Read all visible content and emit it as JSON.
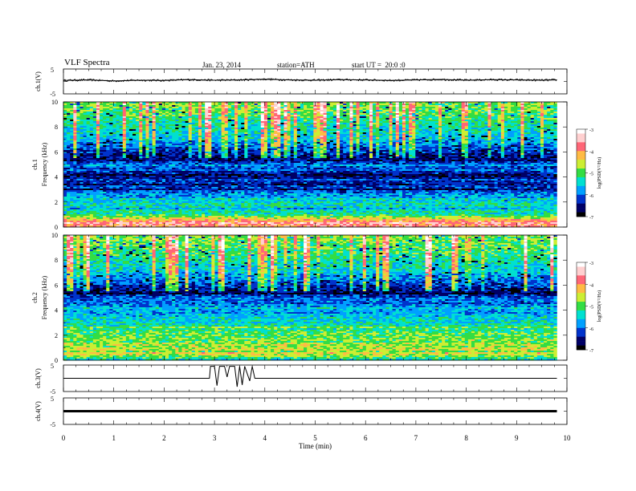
{
  "header": {
    "title": "VLF Spectra",
    "date": "Jan. 23, 2014",
    "station": "station=ATH",
    "start": "start UT =  20:0 :0"
  },
  "colorbar_label": "log(PSD(V²/Hz)",
  "colors": {
    "colormap": [
      "#000000",
      "#000066",
      "#0033cc",
      "#00a0ff",
      "#00e0d0",
      "#33dd44",
      "#ccee33",
      "#ffbb44",
      "#ff6677",
      "#ffd0d0",
      "#ffffff"
    ]
  },
  "chart_data": [
    {
      "type": "line",
      "panel": "ch1",
      "ylabel": "ch.1(V)",
      "ylim": [
        -5,
        5
      ],
      "yticks": [
        "5",
        "-5"
      ],
      "x": [
        0,
        0.5,
        1,
        1.5,
        2,
        2.5,
        3,
        3.5,
        4,
        4.5,
        5,
        5.5,
        6,
        6.5,
        7,
        7.5,
        8,
        8.5,
        9,
        9.5,
        9.8
      ],
      "values": [
        0.4,
        0.6,
        0.2,
        0.5,
        0.4,
        0.7,
        0.5,
        0.6,
        0.9,
        0.6,
        0.5,
        0.7,
        0.6,
        0.4,
        0.6,
        0.8,
        0.5,
        0.7,
        0.6,
        0.5,
        0.6
      ]
    },
    {
      "type": "heatmap",
      "panel": "ch1",
      "ylabel": "ch.1",
      "ylabel2": "Frequency (kHz)",
      "ylim": [
        0,
        10
      ],
      "yticks": [
        "0",
        "2",
        "4",
        "6",
        "8",
        "10"
      ],
      "xlim": [
        0,
        9.8
      ],
      "zlim": [
        -7,
        -3
      ],
      "colorbar_ticks": [
        "-3",
        "-4",
        "-5",
        "-6",
        "-7"
      ],
      "profile_freq_khz": [
        0,
        0.5,
        1,
        1.5,
        2,
        2.5,
        3,
        3.5,
        4,
        4.5,
        5,
        5.5,
        6,
        6.5,
        7,
        7.5,
        8,
        8.5,
        9,
        9.5,
        10
      ],
      "profile_log_psd": [
        -3.8,
        -4.0,
        -5.2,
        -5.3,
        -5.5,
        -5.8,
        -6.2,
        -6.3,
        -6.5,
        -6.3,
        -6.0,
        -6.6,
        -6.3,
        -6.0,
        -5.6,
        -5.5,
        -5.3,
        -5.2,
        -5.0,
        -4.9,
        -4.8
      ]
    },
    {
      "type": "heatmap",
      "panel": "ch2",
      "ylabel": "ch.2",
      "ylabel2": "Frequency (kHz)",
      "ylim": [
        0,
        10
      ],
      "yticks": [
        "0",
        "2",
        "4",
        "6",
        "8",
        "10"
      ],
      "xlim": [
        0,
        9.8
      ],
      "zlim": [
        -7,
        -3
      ],
      "colorbar_ticks": [
        "-3",
        "-4",
        "-5",
        "-6",
        "-7"
      ],
      "profile_freq_khz": [
        0,
        0.5,
        1,
        1.5,
        2,
        2.5,
        3,
        3.5,
        4,
        4.5,
        5,
        5.5,
        6,
        6.5,
        7,
        7.5,
        8,
        8.5,
        9,
        9.5,
        10
      ],
      "profile_log_psd": [
        -5.5,
        -4.4,
        -4.6,
        -4.8,
        -4.9,
        -5.2,
        -5.4,
        -5.6,
        -5.7,
        -5.9,
        -6.1,
        -6.6,
        -6.2,
        -5.9,
        -5.6,
        -5.4,
        -5.3,
        -5.1,
        -5.0,
        -4.9,
        -4.8
      ]
    },
    {
      "type": "line",
      "panel": "ch3",
      "ylabel": "ch.3(V)",
      "ylim": [
        -5,
        5
      ],
      "yticks": [
        "5",
        "-5"
      ],
      "x": [
        0,
        2.9,
        2.92,
        3.0,
        3.05,
        3.1,
        3.2,
        3.25,
        3.3,
        3.4,
        3.45,
        3.5,
        3.55,
        3.6,
        3.7,
        3.75,
        3.8,
        9.8
      ],
      "values": [
        0,
        0,
        4.5,
        4.5,
        -2.8,
        4.5,
        4.5,
        0.5,
        4.5,
        4.5,
        -3.2,
        4.5,
        -2.5,
        4.5,
        -1.0,
        4.5,
        0,
        0
      ]
    },
    {
      "type": "line",
      "panel": "ch4",
      "ylabel": "ch.4(V)",
      "ylim": [
        -5,
        5
      ],
      "yticks": [
        "5",
        "-5"
      ],
      "x": [
        0,
        9.8
      ],
      "values": [
        0,
        0
      ]
    }
  ],
  "x_axis": {
    "label": "Time (min)",
    "ticks": [
      "0",
      "1",
      "2",
      "3",
      "4",
      "5",
      "6",
      "7",
      "8",
      "9",
      "10"
    ],
    "xlim": [
      0,
      10
    ]
  }
}
